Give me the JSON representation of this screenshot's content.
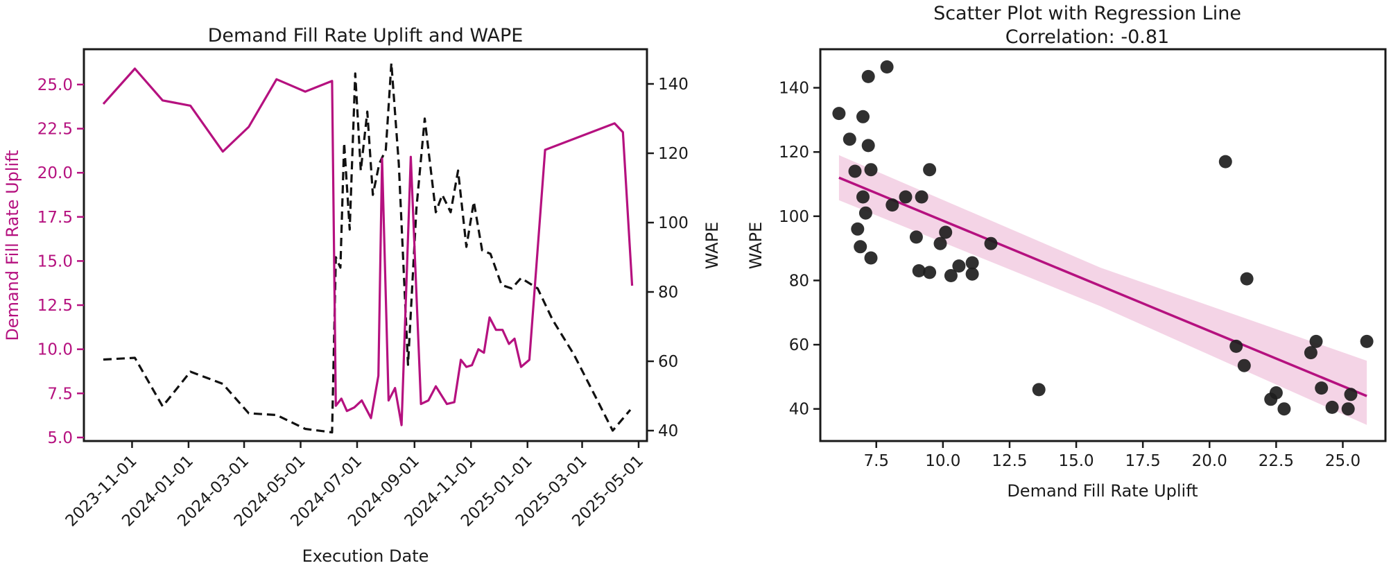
{
  "chart_data": [
    {
      "type": "line",
      "title": "Demand Fill Rate Uplift and WAPE",
      "xlabel": "Execution Date",
      "ylabel_left": "Demand Fill Rate Uplift",
      "ylabel_right": "WAPE",
      "ylim_left": [
        4.8,
        27
      ],
      "ylim_right": [
        37,
        150
      ],
      "yticks_left": [
        "5.0",
        "7.5",
        "10.0",
        "12.5",
        "15.0",
        "17.5",
        "20.0",
        "22.5",
        "25.0"
      ],
      "yticks_right": [
        "40",
        "60",
        "80",
        "100",
        "120",
        "140"
      ],
      "xticks": [
        "2023-11-01",
        "2024-01-01",
        "2024-03-01",
        "2024-05-01",
        "2024-07-01",
        "2024-09-01",
        "2024-11-01",
        "2025-01-01",
        "2025-03-01",
        "2025-05-01"
      ],
      "xlim": [
        "2023-09-10",
        "2025-05-10"
      ],
      "colors": {
        "uplift": "#b5117f",
        "wape": "#111111"
      },
      "series": [
        {
          "axis": "left",
          "style": "solid",
          "points": [
            [
              "2023-10-01",
              23.9
            ],
            [
              "2023-11-04",
              25.9
            ],
            [
              "2023-12-04",
              24.1
            ],
            [
              "2024-01-03",
              23.8
            ],
            [
              "2024-02-07",
              21.2
            ],
            [
              "2024-03-06",
              22.6
            ],
            [
              "2024-04-05",
              25.3
            ],
            [
              "2024-05-06",
              24.6
            ],
            [
              "2024-06-04",
              25.2
            ],
            [
              "2024-06-08",
              6.8
            ],
            [
              "2024-06-14",
              7.2
            ],
            [
              "2024-06-20",
              6.5
            ],
            [
              "2024-06-28",
              6.7
            ],
            [
              "2024-07-06",
              7.1
            ],
            [
              "2024-07-16",
              6.1
            ],
            [
              "2024-07-24",
              8.5
            ],
            [
              "2024-07-28",
              20.8
            ],
            [
              "2024-08-04",
              7.1
            ],
            [
              "2024-08-11",
              7.8
            ],
            [
              "2024-08-18",
              5.7
            ],
            [
              "2024-08-28",
              20.9
            ],
            [
              "2024-09-08",
              6.9
            ],
            [
              "2024-09-16",
              7.1
            ],
            [
              "2024-09-24",
              7.9
            ],
            [
              "2024-10-06",
              6.9
            ],
            [
              "2024-10-14",
              7.0
            ],
            [
              "2024-10-21",
              9.4
            ],
            [
              "2024-10-27",
              9.0
            ],
            [
              "2024-11-02",
              9.1
            ],
            [
              "2024-11-09",
              10.0
            ],
            [
              "2024-11-15",
              9.8
            ],
            [
              "2024-11-21",
              11.8
            ],
            [
              "2024-11-28",
              11.1
            ],
            [
              "2024-12-05",
              11.1
            ],
            [
              "2024-12-12",
              10.3
            ],
            [
              "2024-12-18",
              10.6
            ],
            [
              "2024-12-25",
              9.0
            ],
            [
              "2025-01-03",
              9.4
            ],
            [
              "2025-01-20",
              21.3
            ],
            [
              "2025-04-05",
              22.8
            ],
            [
              "2025-04-14",
              22.3
            ],
            [
              "2025-04-24",
              13.6
            ]
          ]
        },
        {
          "axis": "right",
          "style": "dashed",
          "points": [
            [
              "2023-10-01",
              60.5
            ],
            [
              "2023-11-04",
              61
            ],
            [
              "2023-12-04",
              47
            ],
            [
              "2024-01-03",
              57
            ],
            [
              "2024-02-07",
              53.5
            ],
            [
              "2024-03-06",
              45
            ],
            [
              "2024-04-05",
              44.5
            ],
            [
              "2024-05-06",
              40.5
            ],
            [
              "2024-06-04",
              39.5
            ],
            [
              "2024-06-08",
              90
            ],
            [
              "2024-06-13",
              87
            ],
            [
              "2024-06-17",
              123
            ],
            [
              "2024-06-23",
              98
            ],
            [
              "2024-06-29",
              143
            ],
            [
              "2024-07-05",
              115
            ],
            [
              "2024-07-12",
              132
            ],
            [
              "2024-07-18",
              108
            ],
            [
              "2024-07-25",
              117
            ],
            [
              "2024-08-01",
              121
            ],
            [
              "2024-08-07",
              146
            ],
            [
              "2024-08-15",
              117
            ],
            [
              "2024-08-25",
              59
            ],
            [
              "2024-09-03",
              104
            ],
            [
              "2024-09-12",
              130
            ],
            [
              "2024-09-24",
              103
            ],
            [
              "2024-10-01",
              108
            ],
            [
              "2024-10-10",
              103
            ],
            [
              "2024-10-18",
              115
            ],
            [
              "2024-10-27",
              93
            ],
            [
              "2024-11-04",
              106
            ],
            [
              "2024-11-13",
              92
            ],
            [
              "2024-11-22",
              91
            ],
            [
              "2024-12-04",
              82
            ],
            [
              "2024-12-15",
              81
            ],
            [
              "2024-12-25",
              84
            ],
            [
              "2025-01-12",
              81
            ],
            [
              "2025-01-28",
              72
            ],
            [
              "2025-02-20",
              62
            ],
            [
              "2025-03-15",
              50
            ],
            [
              "2025-04-03",
              40
            ],
            [
              "2025-04-22",
              46
            ]
          ]
        }
      ]
    },
    {
      "type": "scatter",
      "title": "Scatter Plot with Regression Line",
      "subtitle": "Correlation: -0.81",
      "xlabel": "Demand Fill Rate Uplift",
      "ylabel": "WAPE",
      "xlim": [
        5.4,
        26.6
      ],
      "ylim": [
        30,
        152
      ],
      "xticks": [
        "7.5",
        "10.0",
        "12.5",
        "15.0",
        "17.5",
        "20.0",
        "22.5",
        "25.0"
      ],
      "yticks": [
        "40",
        "60",
        "80",
        "100",
        "120",
        "140"
      ],
      "colors": {
        "points": "#1e1e1e",
        "regression": "#b5117f",
        "band": "#f2cde2"
      },
      "regression": {
        "x": [
          6.1,
          25.9
        ],
        "y": [
          112,
          44
        ]
      },
      "confidence_band": {
        "x": [
          6.1,
          15.9,
          25.9
        ],
        "upper": [
          119,
          84,
          55
        ],
        "lower": [
          105,
          72,
          35
        ]
      },
      "points": [
        [
          6.1,
          132
        ],
        [
          6.5,
          124
        ],
        [
          6.7,
          114
        ],
        [
          6.8,
          96
        ],
        [
          6.9,
          90.5
        ],
        [
          7.0,
          106
        ],
        [
          7.0,
          131
        ],
        [
          7.1,
          101
        ],
        [
          7.2,
          143.5
        ],
        [
          7.2,
          122
        ],
        [
          7.3,
          114.5
        ],
        [
          7.3,
          87
        ],
        [
          7.9,
          146.5
        ],
        [
          8.1,
          103.5
        ],
        [
          8.6,
          106
        ],
        [
          9.0,
          93.5
        ],
        [
          9.1,
          83
        ],
        [
          9.2,
          106
        ],
        [
          9.5,
          82.5
        ],
        [
          9.5,
          114.5
        ],
        [
          9.9,
          91.5
        ],
        [
          10.1,
          95
        ],
        [
          10.3,
          81.5
        ],
        [
          10.6,
          84.5
        ],
        [
          11.1,
          85.5
        ],
        [
          11.1,
          82
        ],
        [
          11.8,
          91.5
        ],
        [
          13.6,
          46
        ],
        [
          20.6,
          117
        ],
        [
          21.0,
          59.5
        ],
        [
          21.3,
          53.5
        ],
        [
          21.4,
          80.5
        ],
        [
          22.3,
          43
        ],
        [
          22.5,
          45
        ],
        [
          22.8,
          40
        ],
        [
          23.8,
          57.5
        ],
        [
          24.0,
          61
        ],
        [
          24.2,
          46.5
        ],
        [
          24.6,
          40.5
        ],
        [
          25.2,
          40
        ],
        [
          25.3,
          44.5
        ],
        [
          25.9,
          61
        ]
      ]
    }
  ]
}
